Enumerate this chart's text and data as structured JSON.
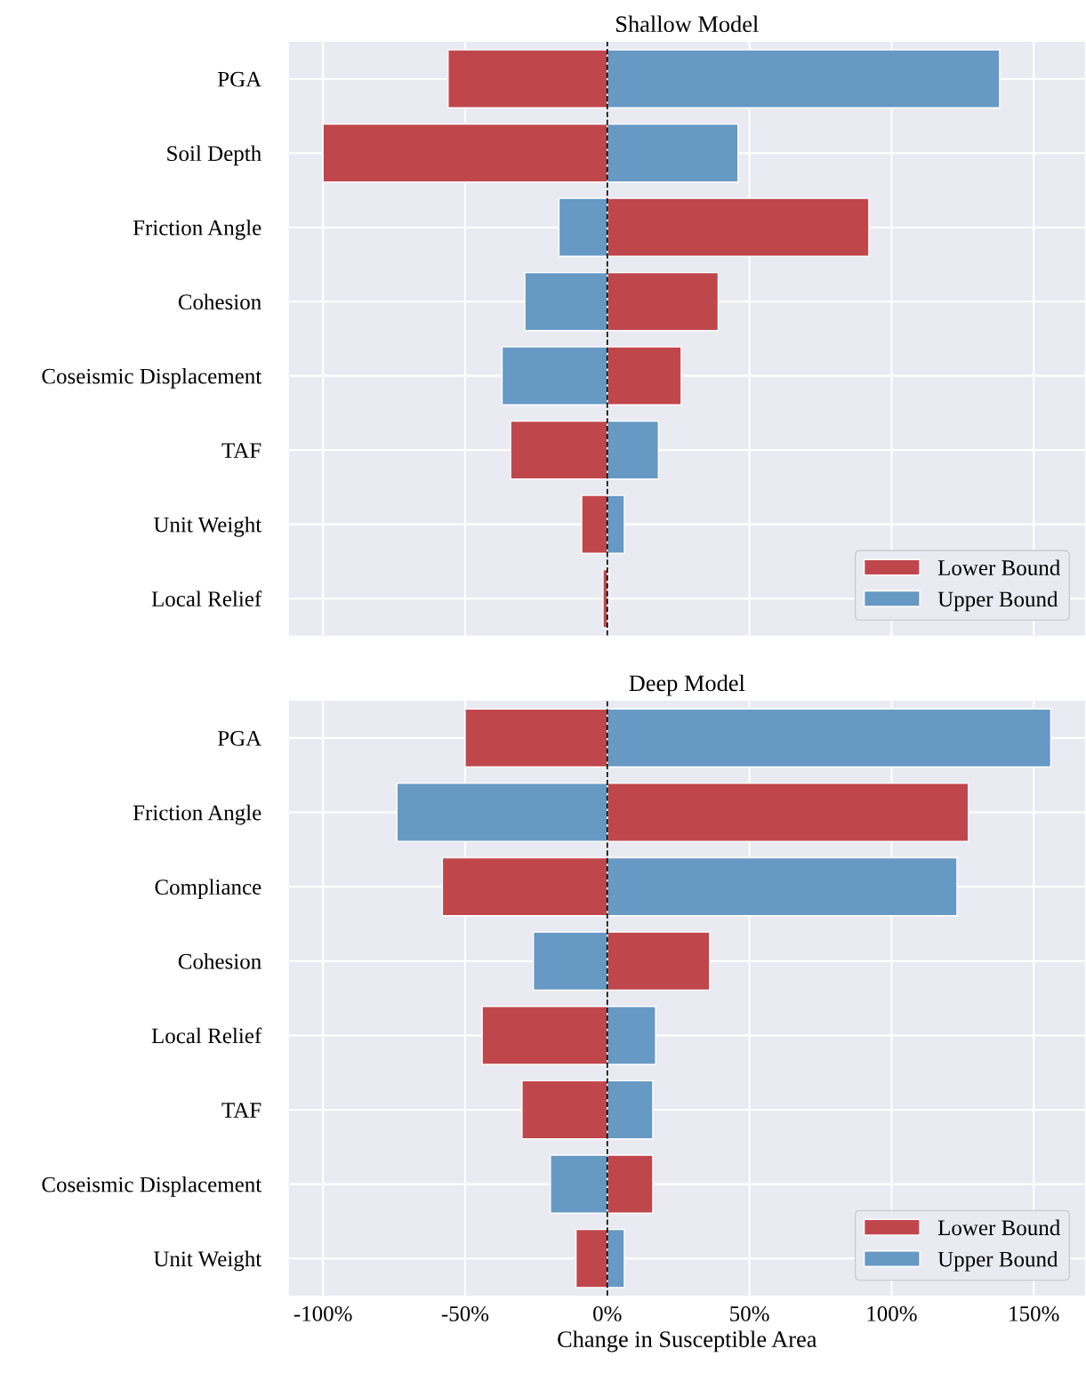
{
  "chart_data": [
    {
      "type": "bar",
      "orientation": "horizontal",
      "title": "Shallow Model",
      "categories": [
        "PGA",
        "Soil Depth",
        "Friction Angle",
        "Cohesion",
        "Coseismic Displacement",
        "TAF",
        "Unit Weight",
        "Local Relief"
      ],
      "series": [
        {
          "name": "Lower Bound",
          "color": "#bf474c",
          "values": [
            -56,
            -100,
            92,
            39,
            26,
            -34,
            -9,
            -1.5
          ]
        },
        {
          "name": "Upper Bound",
          "color": "#6699c4",
          "values": [
            138,
            46,
            -17,
            -29,
            -37,
            18,
            6,
            0.5
          ]
        }
      ],
      "xlim": [
        -112,
        168
      ],
      "stacked": true,
      "xticks": [
        {
          "value": -100,
          "label": null
        },
        {
          "value": -50,
          "label": null
        },
        {
          "value": 0,
          "label": null
        },
        {
          "value": 50,
          "label": null
        },
        {
          "value": 100,
          "label": null
        },
        {
          "value": 150,
          "label": null
        }
      ],
      "tick_labels": "y",
      "ref_lines": [
        {
          "axis": "x",
          "value": 0,
          "color": "#000000",
          "line_style": "dashed"
        }
      ],
      "grid": true,
      "legend": "bottom right"
    },
    {
      "type": "bar",
      "orientation": "horizontal",
      "title": "Deep Model",
      "xlabel": "Change in Susceptible Area",
      "categories": [
        "PGA",
        "Friction Angle",
        "Compliance",
        "Cohesion",
        "Local Relief",
        "TAF",
        "Coseismic Displacement",
        "Unit Weight"
      ],
      "series": [
        {
          "name": "Lower Bound",
          "color": "#bf474c",
          "values": [
            -50,
            127,
            -58,
            36,
            -44,
            -30,
            16,
            -11
          ]
        },
        {
          "name": "Upper Bound",
          "color": "#6699c4",
          "values": [
            156,
            -74,
            123,
            -26,
            17,
            16,
            -20,
            6
          ]
        }
      ],
      "xlim": [
        -112,
        168
      ],
      "stacked": true,
      "xticks": [
        {
          "value": -100,
          "label": "-100%"
        },
        {
          "value": -50,
          "label": "-50%"
        },
        {
          "value": 0,
          "label": "0%"
        },
        {
          "value": 50,
          "label": "50%"
        },
        {
          "value": 100,
          "label": "100%"
        },
        {
          "value": 150,
          "label": "150%"
        }
      ],
      "ref_lines": [
        {
          "axis": "x",
          "value": 0,
          "color": "#000000",
          "line_style": "dashed"
        }
      ],
      "grid": true,
      "legend": "bottom right"
    }
  ]
}
